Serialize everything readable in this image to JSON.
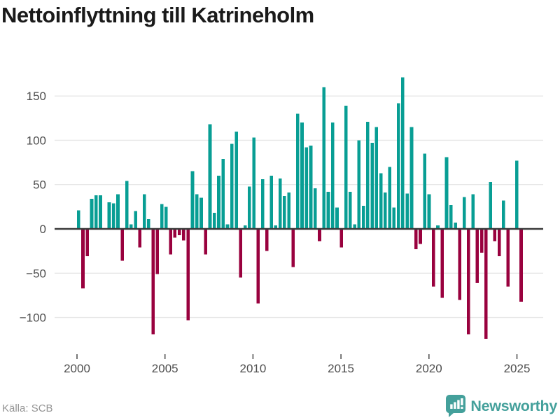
{
  "title": "Nettoinflyttning till Katrineholm",
  "source": {
    "label": "Källa: SCB"
  },
  "logo": {
    "text": "Newsworthy"
  },
  "colors": {
    "positive": "#089e94",
    "negative": "#99013e",
    "brand": "#44a09b",
    "grid": "#e7e7e7",
    "zero_line": "#3a3a3a",
    "title": "#1a1a1a",
    "tick": "#4d4d4d",
    "tick_mark": "#555555",
    "source_text": "#949494"
  },
  "chart_data": {
    "type": "bar",
    "title": "Nettoinflyttning till Katrineholm",
    "ylabel": "",
    "xlabel": "",
    "unit": "personer (nettoinflyttning per kvartal)",
    "frequency": "quarterly",
    "start_period": "2000 Q1",
    "end_period": "2025 Q2",
    "grid": true,
    "legend": "none",
    "y_ticks": [
      150,
      100,
      50,
      0,
      -50,
      -100
    ],
    "x_ticks": [
      2000,
      2005,
      2010,
      2015,
      2020,
      2025
    ],
    "ylim": [
      -135,
      180
    ],
    "values": [
      21,
      -67,
      -31,
      34,
      38,
      38,
      0,
      30,
      29,
      39,
      -36,
      54,
      5,
      20,
      -21,
      39,
      11,
      -119,
      -51,
      28,
      25,
      -29,
      -10,
      -7,
      -13,
      -103,
      65,
      39,
      35,
      -29,
      118,
      18,
      60,
      79,
      5,
      96,
      110,
      -55,
      4,
      48,
      103,
      -84,
      56,
      -25,
      60,
      4,
      57,
      37,
      41,
      -43,
      130,
      120,
      92,
      94,
      46,
      -14,
      160,
      42,
      120,
      24,
      -21,
      139,
      42,
      5,
      100,
      26,
      121,
      97,
      115,
      63,
      41,
      70,
      24,
      142,
      171,
      40,
      115,
      -23,
      -17,
      85,
      39,
      -65,
      4,
      -78,
      81,
      27,
      7,
      -80,
      36,
      -119,
      39,
      -61,
      -27,
      -124,
      53,
      -14,
      -31,
      32,
      -65,
      0,
      77,
      -82
    ]
  }
}
